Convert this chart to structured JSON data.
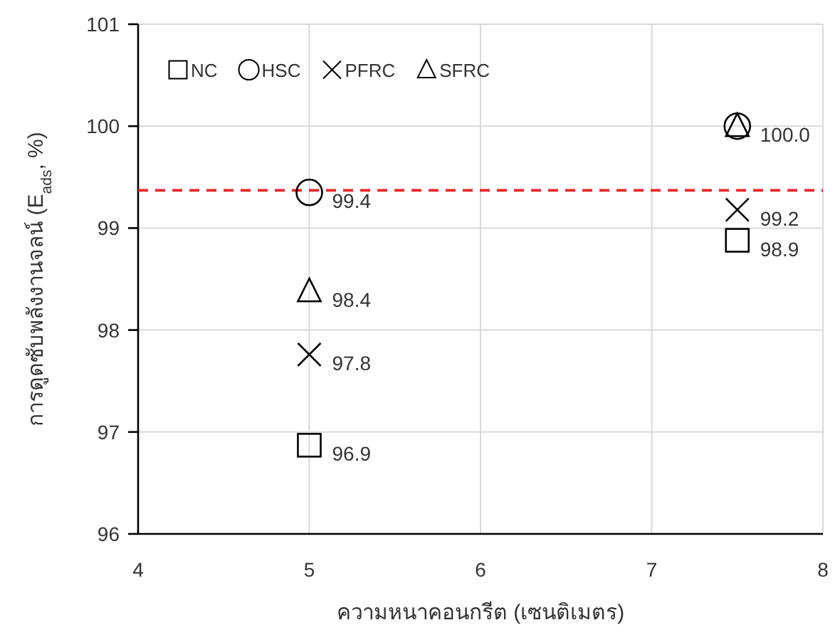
{
  "chart_data": {
    "type": "scatter",
    "xlabel": "ความหนาคอนกรีต (เซนติเมตร)",
    "ylabel": "การดูดซับพลังงานจลน์ (E$_{ads}$, %)",
    "xlim": [
      4,
      8
    ],
    "xticks": [
      4,
      5,
      6,
      7,
      8
    ],
    "ylim": [
      96,
      101
    ],
    "yticks": [
      96,
      97,
      98,
      99,
      100,
      101
    ],
    "grid": true,
    "legend": "top left",
    "x": [
      5,
      7.5
    ],
    "series": [
      {
        "name": "NC",
        "color": "#000000",
        "marker": "square",
        "values": [
          96.87,
          98.88
        ],
        "value_labels": [
          "96.9",
          "98.9"
        ]
      },
      {
        "name": "HSC",
        "color": "#000000",
        "marker": "circle",
        "values": [
          99.35,
          100.0
        ],
        "value_labels": [
          "99.4",
          "100.0"
        ]
      },
      {
        "name": "PFRC",
        "color": "#000000",
        "marker": "cross",
        "values": [
          97.76,
          99.18
        ],
        "value_labels": [
          "97.8",
          "99.2"
        ]
      },
      {
        "name": "SFRC",
        "color": "#000000",
        "marker": "triangle",
        "values": [
          98.38,
          100.0
        ],
        "value_labels": [
          "98.4",
          null
        ]
      }
    ],
    "ref_lines": [
      {
        "axis": "y",
        "value": 99.37,
        "color": "#e8262a",
        "line_style": "dashed"
      }
    ]
  }
}
